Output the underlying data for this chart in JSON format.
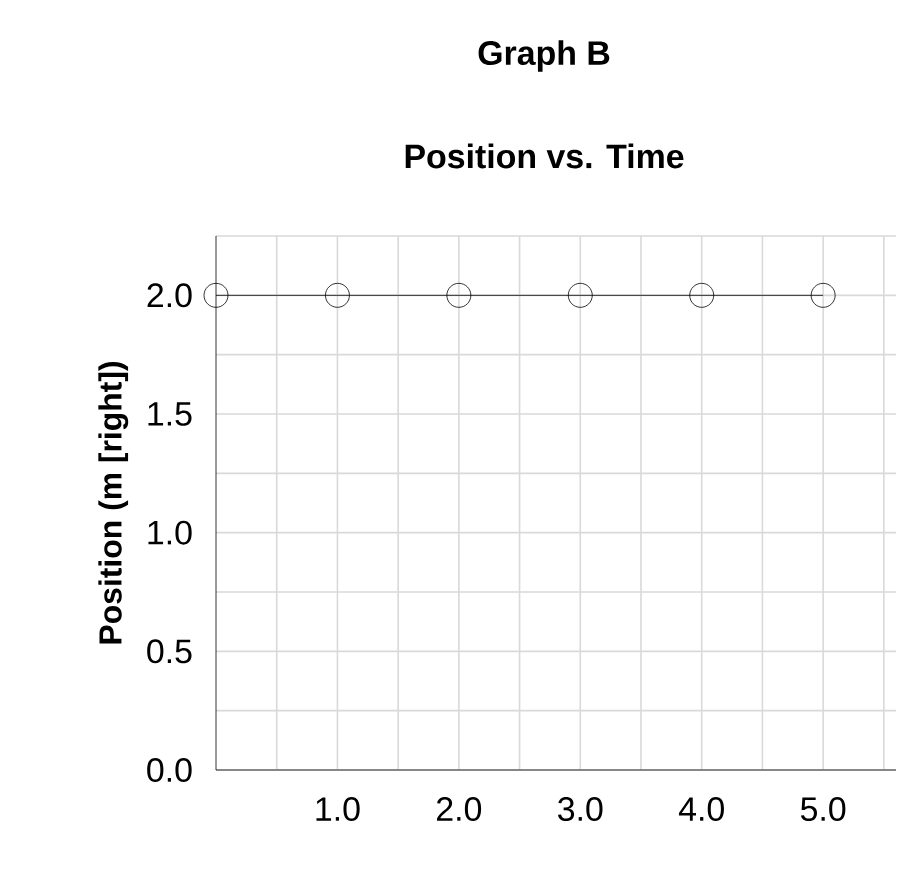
{
  "chart_data": {
    "type": "line",
    "title": "Graph B",
    "subtitle": "Position vs. Time",
    "ylabel": "Position (m [right])",
    "x": [
      0,
      1,
      2,
      3,
      4,
      5
    ],
    "values": [
      2,
      2,
      2,
      2,
      2,
      2
    ],
    "color": "#000000",
    "marker": "circle",
    "line_style": "solid",
    "grid": true,
    "xlim": [
      0,
      5.6
    ],
    "ylim": [
      0,
      2.25
    ],
    "xticks": [
      {
        "value": 0.5,
        "label": null
      },
      {
        "value": 1,
        "label": "1.0"
      },
      {
        "value": 1.5,
        "label": null
      },
      {
        "value": 2,
        "label": "2.0"
      },
      {
        "value": 2.5,
        "label": null
      },
      {
        "value": 3,
        "label": "3.0"
      },
      {
        "value": 3.5,
        "label": null
      },
      {
        "value": 4,
        "label": "4.0"
      },
      {
        "value": 4.5,
        "label": null
      },
      {
        "value": 5,
        "label": "5.0"
      },
      {
        "value": 5.5,
        "label": null
      }
    ],
    "yticks": [
      {
        "value": 0,
        "label": "0.0"
      },
      {
        "value": 0.25,
        "label": null
      },
      {
        "value": 0.5,
        "label": "0.5"
      },
      {
        "value": 0.75,
        "label": null
      },
      {
        "value": 1,
        "label": "1.0"
      },
      {
        "value": 1.25,
        "label": null
      },
      {
        "value": 1.5,
        "label": "1.5"
      },
      {
        "value": 1.75,
        "label": null
      },
      {
        "value": 2,
        "label": "2.0"
      },
      {
        "value": 2.25,
        "label": null
      }
    ]
  }
}
